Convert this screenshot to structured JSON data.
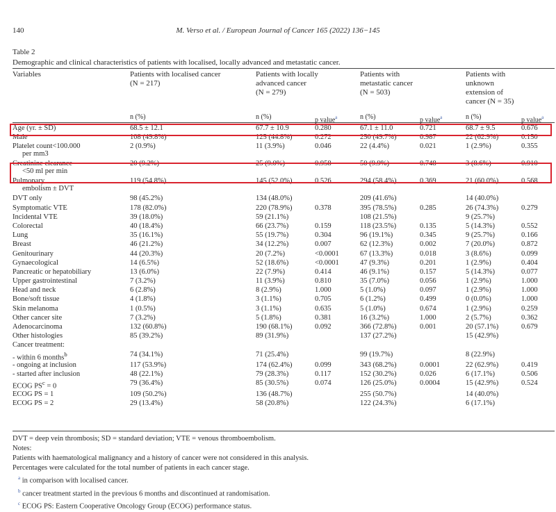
{
  "header": {
    "page_number": "140",
    "running_head": "M. Verso et al. / European Journal of Cancer 165 (2022) 136−145"
  },
  "table": {
    "label": "Table 2",
    "caption": "Demographic and clinical characteristics of patients with localised, locally advanced and metastatic cancer.",
    "variables_header": "Variables",
    "groups": [
      {
        "line1": "Patients with localised cancer",
        "line2": "(N = 217)",
        "line3": "",
        "line4": ""
      },
      {
        "line1": "Patients with locally",
        "line2": "advanced cancer",
        "line3": "(N = 279)",
        "line4": ""
      },
      {
        "line1": "Patients with",
        "line2": "metastatic cancer",
        "line3": "(N = 503)",
        "line4": ""
      },
      {
        "line1": "Patients with",
        "line2": "unknown",
        "line3": "extension of",
        "line4": "cancer (N = 35)"
      }
    ],
    "sub_n": "n (%)",
    "sub_p": "p value",
    "sub_p_mark": "a",
    "rows": [
      {
        "label": "Age (yr. ± SD)",
        "label2": "",
        "c1": "68.5 ± 12.1",
        "c2": "67.7 ± 10.9",
        "p2": "0.280",
        "c3": "67.1 ± 11.0",
        "p3": "0.721",
        "c4": "68.7 ± 9.5",
        "p4": "0.676"
      },
      {
        "label": "Male",
        "label2": "",
        "c1": "108 (49.8%)",
        "c2": "125 (44.8%)",
        "p2": "0.272",
        "c3": "250 (49.7%)",
        "p3": "0.987",
        "c4": "22 (62.9%)",
        "p4": "0.150"
      },
      {
        "label": "Platelet count<100.000",
        "label2": "per mm3",
        "c1": "2 (0.9%)",
        "c2": "11 (3.9%)",
        "p2": "0.046",
        "c3": "22 (4.4%)",
        "p3": "0.021",
        "c4": "1 (2.9%)",
        "p4": "0.355"
      },
      {
        "label": "Creatinine clearance",
        "label2": "<50 ml per min",
        "c1": "20 (9.2%)",
        "c2": "25 (9.0%)",
        "p2": "0.958",
        "c3": "50 (9.9%)",
        "p3": "0.748",
        "c4": "3 (8.6%)",
        "p4": "0.910"
      },
      {
        "label": "Pulmonary",
        "label2": "embolism ± DVT",
        "c1": "119 (54.8%)",
        "c2": "145 (52.0%)",
        "p2": "0.526",
        "c3": "294 (58.4%)",
        "p3": "0.369",
        "c4": "21 (60.0%)",
        "p4": "0.568"
      },
      {
        "label": "DVT only",
        "label2": "",
        "c1": "98 (45.2%)",
        "c2": "134 (48.0%)",
        "p2": "",
        "c3": "209 (41.6%)",
        "p3": "",
        "c4": "14 (40.0%)",
        "p4": ""
      },
      {
        "label": "Symptomatic VTE",
        "label2": "",
        "c1": "178 (82.0%)",
        "c2": "220 (78.9%)",
        "p2": "0.378",
        "c3": "395 (78.5%)",
        "p3": "0.285",
        "c4": "26 (74.3%)",
        "p4": "0.279"
      },
      {
        "label": "Incidental VTE",
        "label2": "",
        "c1": "39 (18.0%)",
        "c2": "59 (21.1%)",
        "p2": "",
        "c3": "108 (21.5%)",
        "p3": "",
        "c4": "9 (25.7%)",
        "p4": ""
      },
      {
        "label": "Colorectal",
        "label2": "",
        "c1": "40 (18.4%)",
        "c2": "66 (23.7%)",
        "p2": "0.159",
        "c3": "118 (23.5%)",
        "p3": "0.135",
        "c4": "5 (14.3%)",
        "p4": "0.552"
      },
      {
        "label": "Lung",
        "label2": "",
        "c1": "35 (16.1%)",
        "c2": "55 (19.7%)",
        "p2": "0.304",
        "c3": "96 (19.1%)",
        "p3": "0.345",
        "c4": "9 (25.7%)",
        "p4": "0.166"
      },
      {
        "label": "Breast",
        "label2": "",
        "c1": "46 (21.2%)",
        "c2": "34 (12.2%)",
        "p2": "0.007",
        "c3": "62 (12.3%)",
        "p3": "0.002",
        "c4": "7 (20.0%)",
        "p4": "0.872"
      },
      {
        "label": "Genitourinary",
        "label2": "",
        "c1": "44 (20.3%)",
        "c2": "20 (7.2%)",
        "p2": "<0.0001",
        "c3": "67 (13.3%)",
        "p3": "0.018",
        "c4": "3 (8.6%)",
        "p4": "0.099"
      },
      {
        "label": "Gynaecological",
        "label2": "",
        "c1": "14 (6.5%)",
        "c2": "52 (18.6%)",
        "p2": "<0.0001",
        "c3": "47 (9.3%)",
        "p3": "0.201",
        "c4": "1 (2.9%)",
        "p4": "0.404"
      },
      {
        "label": "Pancreatic or hepatobiliary",
        "label2": "",
        "c1": "13 (6.0%)",
        "c2": "22 (7.9%)",
        "p2": "0.414",
        "c3": "46 (9.1%)",
        "p3": "0.157",
        "c4": "5 (14.3%)",
        "p4": "0.077"
      },
      {
        "label": "Upper gastrointestinal",
        "label2": "",
        "c1": "7 (3.2%)",
        "c2": "11 (3.9%)",
        "p2": "0.810",
        "c3": "35 (7.0%)",
        "p3": "0.056",
        "c4": "1 (2.9%)",
        "p4": "1.000"
      },
      {
        "label": "Head and neck",
        "label2": "",
        "c1": "6 (2.8%)",
        "c2": "8 (2.9%)",
        "p2": "1.000",
        "c3": "5 (1.0%)",
        "p3": "0.097",
        "c4": "1 (2.9%)",
        "p4": "1.000"
      },
      {
        "label": "Bone/soft tissue",
        "label2": "",
        "c1": "4 (1.8%)",
        "c2": "3 (1.1%)",
        "p2": "0.705",
        "c3": "6 (1.2%)",
        "p3": "0.499",
        "c4": "0 (0.0%)",
        "p4": "1.000"
      },
      {
        "label": "Skin melanoma",
        "label2": "",
        "c1": "1 (0.5%)",
        "c2": "3 (1.1%)",
        "p2": "0.635",
        "c3": "5 (1.0%)",
        "p3": "0.674",
        "c4": "1 (2.9%)",
        "p4": "0.259"
      },
      {
        "label": "Other cancer site",
        "label2": "",
        "c1": "7 (3.2%)",
        "c2": "5 (1.8%)",
        "p2": "0.381",
        "c3": "16 (3.2%)",
        "p3": "1.000",
        "c4": "2 (5.7%)",
        "p4": "0.362"
      },
      {
        "label": "Adenocarcinoma",
        "label2": "",
        "c1": "132 (60.8%)",
        "c2": "190 (68.1%)",
        "p2": "0.092",
        "c3": "366 (72.8%)",
        "p3": "0.001",
        "c4": "20 (57.1%)",
        "p4": "0.679"
      },
      {
        "label": "Other histologies",
        "label2": "",
        "c1": "85 (39.2%)",
        "c2": "89 (31.9%)",
        "p2": "",
        "c3": "137 (27.2%)",
        "p3": "",
        "c4": "15 (42.9%)",
        "p4": ""
      },
      {
        "label": "Cancer treatment:",
        "label2": "",
        "c1": "",
        "c2": "",
        "p2": "",
        "c3": "",
        "p3": "",
        "c4": "",
        "p4": ""
      },
      {
        "label": "- within 6 months",
        "label_mark": "b",
        "label2": "",
        "c1": "74 (34.1%)",
        "c2": "71 (25.4%)",
        "p2": "",
        "c3": "99 (19.7%)",
        "p3": "",
        "c4": "8 (22.9%)",
        "p4": ""
      },
      {
        "label": "- ongoing at inclusion",
        "label2": "",
        "c1": "117 (53.9%)",
        "c2": "174 (62.4%)",
        "p2": "0.099",
        "c3": "343 (68.2%)",
        "p3": "0.0001",
        "c4": "22 (62.9%)",
        "p4": "0.419"
      },
      {
        "label": "- started after inclusion",
        "label2": "",
        "c1": "48 (22.1%)",
        "c2": "79 (28.3%)",
        "p2": "0.117",
        "c3": "152 (30.2%)",
        "p3": "0.026",
        "c4": "6 (17.1%)",
        "p4": "0.506"
      },
      {
        "label": "ECOG PS",
        "label_mark": "c",
        "label_suffix": " = 0",
        "label2": "",
        "c1": "79 (36.4%)",
        "c2": "85 (30.5%)",
        "p2": "0.074",
        "c3": "126 (25.0%)",
        "p3": "0.0004",
        "c4": "15 (42.9%)",
        "p4": "0.524"
      },
      {
        "label": "ECOG PS = 1",
        "label2": "",
        "c1": "109 (50.2%)",
        "c2": "136 (48.7%)",
        "p2": "",
        "c3": "255 (50.7%)",
        "p3": "",
        "c4": "14 (40.0%)",
        "p4": ""
      },
      {
        "label": "ECOG PS = 2",
        "label2": "",
        "c1": "29 (13.4%)",
        "c2": "58 (20.8%)",
        "p2": "",
        "c3": "122 (24.3%)",
        "p3": "",
        "c4": "6 (17.1%)",
        "p4": ""
      }
    ]
  },
  "notes": {
    "abbreviations": "DVT = deep vein thrombosis; SD = standard deviation; VTE = venous thromboembolism.",
    "heading": "Notes:",
    "line1": "Patients with haematological malignancy and a history of cancer were not considered in this analysis.",
    "line2": "Percentages were calculated for the total number of patients in each cancer stage.",
    "footnotes": [
      {
        "mark": "a",
        "text": "in comparison with localised cancer."
      },
      {
        "mark": "b",
        "text": "cancer treatment started in the previous 6 months and discontinued at randomisation."
      },
      {
        "mark": "c",
        "text": "ECOG PS: Eastern Cooperative Oncology Group (ECOG) performance status."
      }
    ]
  },
  "colors": {
    "highlight": "#d9232e",
    "footnote_mark": "#3b5ba8"
  }
}
